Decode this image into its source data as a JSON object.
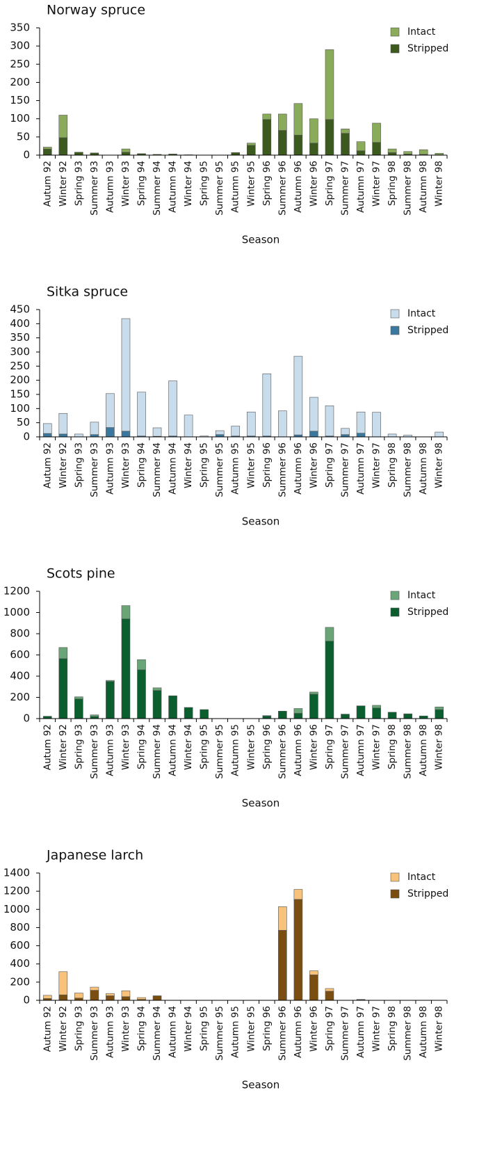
{
  "chart_data": [
    {
      "type": "bar",
      "stacked": true,
      "title": "Norway spruce",
      "xlabel": "Season",
      "legend": "upper right",
      "categories": [
        "Autum 92",
        "Winter 92",
        "Spring 93",
        "Summer 93",
        "Autumn 93",
        "Winter 93",
        "Spring 94",
        "Summer 94",
        "Autumn 94",
        "Winter 94",
        "Spring 95",
        "Summer 95",
        "Autumn 95",
        "Winter 95",
        "Spring 96",
        "Summer 96",
        "Autumn 96",
        "Winter 96",
        "Spring 97",
        "Summer 97",
        "Autumn 97",
        "Winter 97",
        "Spring 98",
        "Summer 98",
        "Autumn 98",
        "Winter 98"
      ],
      "series": [
        {
          "name": "Intact",
          "color": "#8aab5a",
          "values": [
            5,
            62,
            0,
            0,
            0,
            9,
            0,
            0,
            0,
            1,
            0,
            0,
            0,
            6,
            15,
            45,
            87,
            67,
            192,
            12,
            25,
            53,
            10,
            7,
            13,
            4
          ]
        },
        {
          "name": "Stripped",
          "color": "#3c5a1e",
          "values": [
            17,
            48,
            8,
            6,
            0,
            8,
            4,
            2,
            3,
            0,
            0,
            0,
            7,
            27,
            98,
            68,
            55,
            33,
            98,
            60,
            12,
            35,
            7,
            3,
            2,
            1
          ]
        }
      ],
      "ylim": [
        0,
        350
      ],
      "yticks": [
        0,
        50,
        100,
        150,
        200,
        250,
        300,
        350
      ]
    },
    {
      "type": "bar",
      "stacked": true,
      "title": "Sitka spruce",
      "xlabel": "Season",
      "legend": "upper right",
      "categories": [
        "Autum 92",
        "Winter 92",
        "Spring 93",
        "Summer 93",
        "Autumn 93",
        "Winter 93",
        "Spring 94",
        "Summer 94",
        "Autumn 94",
        "Winter 94",
        "Spring 95",
        "Summer 95",
        "Autumn 95",
        "Winter 95",
        "Spring 96",
        "Summer 96",
        "Autumn 96",
        "Winter 96",
        "Spring 97",
        "Summer 97",
        "Autumn 97",
        "Winter 97",
        "Spring 98",
        "Summer 98",
        "Autumn 98",
        "Winter 98"
      ],
      "series": [
        {
          "name": "Intact",
          "color": "#c8dceb",
          "values": [
            35,
            73,
            10,
            44,
            120,
            398,
            155,
            30,
            195,
            77,
            3,
            14,
            35,
            85,
            220,
            92,
            278,
            120,
            107,
            22,
            75,
            87,
            10,
            6,
            0,
            17
          ]
        },
        {
          "name": "Stripped",
          "color": "#3b78a0",
          "values": [
            12,
            10,
            0,
            8,
            33,
            20,
            3,
            2,
            3,
            0,
            0,
            8,
            3,
            3,
            3,
            0,
            7,
            20,
            3,
            8,
            13,
            0,
            0,
            0,
            0,
            0
          ]
        }
      ],
      "ylim": [
        0,
        450
      ],
      "yticks": [
        0,
        50,
        100,
        150,
        200,
        250,
        300,
        350,
        400,
        450
      ]
    },
    {
      "type": "bar",
      "stacked": true,
      "title": "Scots pine",
      "xlabel": "Season",
      "legend": "upper right",
      "categories": [
        "Autum 92",
        "Winter 92",
        "Spring 93",
        "Summer 93",
        "Autumn 93",
        "Winter 93",
        "Spring 94",
        "Summer 94",
        "Autumn 94",
        "Winter 94",
        "Spring 95",
        "Summer 95",
        "Autumn 95",
        "Winter 95",
        "Spring 96",
        "Summer 96",
        "Autumn 96",
        "Winter 96",
        "Spring 97",
        "Summer 97",
        "Autumn 97",
        "Winter 97",
        "Spring 98",
        "Summer 98",
        "Autumn 98",
        "Winter 98"
      ],
      "series": [
        {
          "name": "Intact",
          "color": "#6aa577",
          "values": [
            0,
            105,
            20,
            15,
            10,
            125,
            95,
            25,
            0,
            0,
            0,
            0,
            0,
            0,
            3,
            0,
            45,
            20,
            130,
            0,
            0,
            25,
            0,
            0,
            0,
            25
          ]
        },
        {
          "name": "Stripped",
          "color": "#0b5e2e",
          "values": [
            22,
            565,
            185,
            20,
            350,
            940,
            460,
            265,
            215,
            105,
            85,
            0,
            0,
            0,
            25,
            70,
            50,
            230,
            730,
            42,
            120,
            100,
            60,
            45,
            25,
            85
          ]
        }
      ],
      "ylim": [
        0,
        1200
      ],
      "yticks": [
        0,
        200,
        400,
        600,
        800,
        1000,
        1200
      ]
    },
    {
      "type": "bar",
      "stacked": true,
      "title": "Japanese larch",
      "xlabel": "Season",
      "legend": "upper right",
      "categories": [
        "Autum 92",
        "Winter 92",
        "Spring 93",
        "Summer 93",
        "Autumn 93",
        "Winter 93",
        "Spring 94",
        "Summer 94",
        "Autumn 94",
        "Winter 94",
        "Spring 95",
        "Summer 95",
        "Autumn 95",
        "Winter 95",
        "Spring 96",
        "Summer 96",
        "Autumn 96",
        "Winter 96",
        "Spring 97",
        "Summer 97",
        "Autumn 97",
        "Winter 97",
        "Spring 98",
        "Summer 98",
        "Autumn 98",
        "Winter 98"
      ],
      "series": [
        {
          "name": "Intact",
          "color": "#f9c27a",
          "values": [
            35,
            255,
            55,
            35,
            25,
            65,
            20,
            0,
            0,
            0,
            0,
            0,
            0,
            0,
            0,
            260,
            110,
            45,
            30,
            0,
            5,
            0,
            0,
            0,
            0,
            0
          ]
        },
        {
          "name": "Stripped",
          "color": "#7a4e10",
          "values": [
            20,
            60,
            25,
            110,
            50,
            40,
            10,
            50,
            0,
            0,
            0,
            0,
            0,
            0,
            0,
            770,
            1110,
            280,
            100,
            0,
            5,
            0,
            0,
            0,
            0,
            0
          ]
        }
      ],
      "ylim": [
        0,
        1400
      ],
      "yticks": [
        0,
        200,
        400,
        600,
        800,
        1000,
        1200,
        1400
      ]
    }
  ]
}
